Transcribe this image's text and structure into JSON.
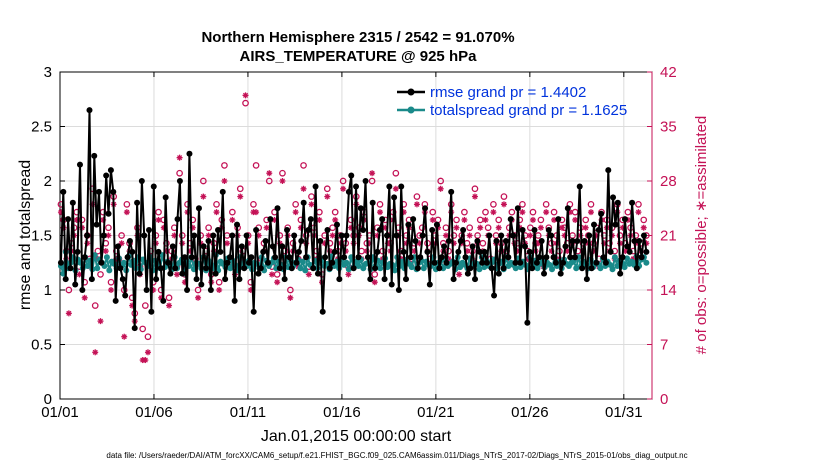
{
  "chart_data": {
    "type": "line",
    "title": "Northern Hemisphere 2315 / 2542 = 91.070%",
    "subtitle": "AIRS_TEMPERATURE @ 925 hPa",
    "xlabel": "Jan.01,2015 00:00:00 start",
    "ylabel": "rmse and totalspread",
    "y2label": "# of obs: o=possible; ∗=assimilated",
    "xlim": [
      0,
      31.5
    ],
    "ylim": [
      0,
      3
    ],
    "y2lim": [
      0,
      42
    ],
    "x_ticks": [
      {
        "x": 0,
        "label": "01/01"
      },
      {
        "x": 5,
        "label": "01/06"
      },
      {
        "x": 10,
        "label": "01/11"
      },
      {
        "x": 15,
        "label": "01/16"
      },
      {
        "x": 20,
        "label": "01/21"
      },
      {
        "x": 25,
        "label": "01/26"
      },
      {
        "x": 30,
        "label": "01/31"
      }
    ],
    "y_ticks": [
      "0",
      "0.5",
      "1",
      "1.5",
      "2",
      "2.5",
      "3"
    ],
    "y2_ticks": [
      "0",
      "7",
      "14",
      "21",
      "28",
      "35",
      "42"
    ],
    "legend": {
      "position": "top-right",
      "entries": [
        "rmse grand pr = 1.4402",
        "totalspread grand pr = 1.1625"
      ]
    },
    "colors": {
      "rmse": "#000000",
      "spread": "#1a8a8a",
      "obs": "#c41256",
      "legend_text": "#0033dd"
    },
    "series": [
      {
        "name": "rmse",
        "values": [
          1.25,
          1.9,
          1.1,
          1.65,
          1.2,
          1.8,
          1.05,
          1.35,
          2.15,
          1.0,
          1.3,
          1.5,
          2.65,
          1.1,
          2.23,
          1.6,
          1.9,
          1.25,
          1.5,
          2.05,
          1.7,
          2.1,
          1.9,
          0.9,
          1.4,
          1.2,
          1.1,
          0.95,
          1.3,
          1.45,
          1.35,
          0.65,
          1.8,
          1.15,
          2.0,
          1.5,
          1.0,
          1.55,
          0.8,
          1.95,
          1.1,
          1.35,
          1.2,
          0.9,
          1.85,
          1.25,
          1.15,
          1.4,
          1.2,
          1.65,
          2.0,
          1.15,
          1.3,
          1.0,
          2.25,
          1.3,
          1.5,
          1.1,
          1.75,
          1.05,
          1.4,
          1.2,
          1.45,
          1.0,
          1.5,
          1.15,
          1.55,
          1.35,
          1.9,
          1.1,
          1.25,
          1.3,
          1.5,
          0.9,
          1.6,
          1.1,
          1.4,
          1.2,
          1.5,
          1.25,
          1.3,
          0.8,
          1.55,
          1.15,
          1.2,
          1.35,
          1.45,
          1.25,
          1.65,
          1.4,
          1.3,
          1.75,
          1.2,
          1.4,
          1.1,
          1.55,
          1.3,
          1.2,
          1.5,
          1.25,
          1.35,
          1.45,
          1.8,
          1.3,
          1.55,
          1.65,
          1.2,
          1.95,
          1.15,
          1.45,
          0.8,
          1.3,
          1.55,
          1.2,
          1.25,
          1.35,
          1.6,
          1.1,
          1.5,
          1.3,
          1.5,
          1.9,
          2.05,
          1.2,
          1.95,
          1.3,
          1.75,
          1.55,
          2.0,
          1.3,
          1.1,
          1.8,
          1.2,
          1.35,
          1.55,
          1.65,
          1.1,
          1.5,
          1.95,
          1.05,
          1.85,
          1.5,
          1.0,
          1.95,
          1.35,
          1.1,
          1.6,
          1.3,
          1.65,
          1.45,
          1.2,
          1.3,
          1.5,
          1.75,
          1.35,
          1.05,
          1.55,
          1.25,
          1.6,
          1.2,
          1.3,
          1.4,
          1.25,
          1.45,
          1.9,
          1.1,
          1.25,
          1.35,
          1.45,
          1.55,
          1.3,
          1.15,
          1.2,
          1.4,
          1.1,
          1.45,
          1.35,
          1.25,
          1.35,
          1.25,
          1.5,
          1.2,
          0.95,
          1.45,
          1.15,
          1.5,
          1.2,
          1.45,
          1.3,
          1.65,
          1.5,
          1.25,
          1.75,
          1.25,
          1.55,
          1.4,
          0.7,
          1.35,
          1.2,
          1.55,
          1.25,
          1.3,
          1.45,
          1.15,
          1.3,
          1.55,
          1.5,
          1.3,
          1.25,
          1.65,
          1.15,
          1.25,
          1.4,
          1.75,
          1.3,
          1.45,
          1.3,
          1.45,
          1.95,
          1.2,
          1.45,
          1.1,
          1.5,
          1.2,
          1.6,
          1.25,
          1.55,
          1.7,
          1.3,
          1.25,
          2.1,
          1.35,
          1.85,
          1.6,
          1.8,
          1.15,
          1.3,
          1.65,
          1.4,
          1.35,
          1.8,
          1.45,
          1.2,
          1.45,
          1.3,
          1.5,
          1.35
        ]
      },
      {
        "name": "totalspread",
        "values": [
          1.22,
          1.15,
          1.35,
          1.2,
          1.25,
          1.3,
          1.18,
          1.28,
          1.25,
          1.2,
          1.3,
          1.22,
          1.27,
          1.19,
          1.32,
          1.2,
          1.28,
          1.25,
          1.22,
          1.3,
          1.18,
          1.26,
          1.24,
          1.2,
          1.29,
          1.22,
          1.25,
          1.18,
          1.31,
          1.23,
          1.27,
          1.2,
          1.3,
          1.19,
          1.28,
          1.25,
          1.22,
          1.3,
          1.18,
          1.27,
          1.24,
          1.2,
          1.32,
          1.21,
          1.26,
          1.23,
          1.19,
          1.3,
          1.2,
          1.25,
          1.28,
          1.15,
          1.27,
          1.22,
          1.3,
          1.19,
          1.25,
          1.24,
          1.2,
          1.3,
          1.18,
          1.27,
          1.23,
          1.2,
          1.32,
          1.18,
          1.26,
          1.24,
          1.21,
          1.29,
          1.2,
          1.27,
          1.23,
          1.18,
          1.3,
          1.21,
          1.26,
          1.22,
          1.28,
          1.19,
          1.25,
          1.24,
          1.2,
          1.3,
          1.18,
          1.27,
          1.22,
          1.25,
          1.29,
          1.2,
          1.26,
          1.23,
          1.19,
          1.3,
          1.21,
          1.27,
          1.22,
          1.25,
          1.28,
          1.2,
          1.26,
          1.18,
          1.3,
          1.23,
          1.21,
          1.27,
          1.2,
          1.25,
          1.29,
          1.22,
          1.24,
          1.19,
          1.31,
          1.22,
          1.26,
          1.2,
          1.28,
          1.23,
          1.25,
          1.19,
          1.3,
          1.21,
          1.26,
          1.22,
          1.28,
          1.2,
          1.24,
          1.25,
          1.19,
          1.3,
          1.22,
          1.27,
          1.2,
          1.25,
          1.29,
          1.21,
          1.24,
          1.23,
          1.18,
          1.3,
          1.22,
          1.26,
          1.2,
          1.28,
          1.24,
          1.21,
          1.3,
          1.19,
          1.25,
          1.27,
          1.2,
          1.26,
          1.23,
          1.22,
          1.3,
          1.19,
          1.25,
          1.27,
          1.2,
          1.28,
          1.22,
          1.24,
          1.26,
          1.19,
          1.3,
          1.21,
          1.25,
          1.23,
          1.2,
          1.29,
          1.22,
          1.25,
          1.24,
          1.19,
          1.3,
          1.21,
          1.27,
          1.22,
          1.25,
          1.28,
          1.2,
          1.24,
          1.26,
          1.19,
          1.3,
          1.22,
          1.25,
          1.23,
          1.2,
          1.29,
          1.21,
          1.26,
          1.23,
          1.19,
          1.3,
          1.22,
          1.27,
          1.2,
          1.24,
          1.28,
          1.21,
          1.25,
          1.23,
          1.19,
          1.3,
          1.22,
          1.26,
          1.2,
          1.28,
          1.24,
          1.22,
          1.25,
          1.27,
          1.2,
          1.3,
          1.22,
          1.26,
          1.23,
          1.2,
          1.28,
          1.21,
          1.25,
          1.24,
          1.2,
          1.29,
          1.22,
          1.26,
          1.23,
          1.19,
          1.3,
          1.22,
          1.27,
          1.25,
          1.21,
          1.29,
          1.24,
          1.26,
          1.23,
          1.31,
          1.22,
          1.28,
          1.3,
          1.25
        ]
      }
    ],
    "obs_possible": [
      25,
      23,
      19,
      14,
      20,
      22,
      24,
      17,
      23,
      15,
      21,
      18,
      27,
      12,
      19,
      16,
      24,
      20,
      22,
      15,
      26,
      19,
      18,
      21,
      14,
      25,
      20,
      13,
      11,
      22,
      17,
      9,
      12,
      8,
      19,
      15,
      21,
      24,
      14,
      23,
      20,
      13,
      19,
      22,
      17,
      29,
      21,
      16,
      25,
      20,
      23,
      18,
      14,
      21,
      28,
      19,
      22,
      16,
      20,
      25,
      15,
      23,
      30,
      21,
      18,
      24,
      17,
      22,
      27,
      19,
      38,
      21,
      15,
      25,
      30,
      22,
      18,
      20,
      23,
      28,
      17,
      24,
      16,
      21,
      29,
      19,
      22,
      14,
      20,
      25,
      18,
      23,
      30,
      21,
      17,
      26,
      22,
      19,
      24,
      16,
      21,
      27,
      20,
      22,
      24,
      19,
      21,
      28,
      20,
      17,
      23,
      21,
      26,
      22,
      19,
      24,
      20,
      21,
      28,
      16,
      22,
      25,
      19,
      23,
      21,
      20,
      24,
      29,
      22,
      19,
      25,
      21,
      23,
      18,
      20,
      26,
      21,
      22,
      25,
      20,
      18,
      24,
      21,
      23,
      28,
      20,
      22,
      19,
      25,
      21,
      23,
      17,
      21,
      24,
      20,
      22,
      19,
      27,
      21,
      23,
      20,
      24,
      22,
      18,
      25,
      21,
      23,
      20,
      26,
      19,
      22,
      24,
      21,
      20,
      23,
      25,
      21,
      19,
      22,
      24,
      20,
      21,
      23,
      18,
      25,
      22,
      20,
      24,
      21,
      19,
      23,
      22,
      20,
      25,
      21,
      24,
      19,
      22,
      20,
      23,
      21,
      25,
      20,
      22,
      18,
      24,
      21,
      23,
      20,
      22,
      19,
      25,
      21,
      23,
      20,
      24,
      22,
      19,
      21,
      25,
      20,
      23,
      21
    ],
    "obs_assimilated": [
      24,
      22,
      18,
      11,
      19,
      21,
      23,
      16,
      22,
      13,
      20,
      17,
      25,
      6,
      18,
      10,
      23,
      19,
      21,
      14,
      25,
      18,
      17,
      20,
      8,
      24,
      19,
      12,
      10,
      21,
      16,
      5,
      5,
      6,
      18,
      14,
      20,
      23,
      13,
      22,
      19,
      12,
      18,
      21,
      16,
      31,
      20,
      15,
      24,
      19,
      22,
      17,
      13,
      20,
      26,
      18,
      21,
      15,
      19,
      24,
      14,
      22,
      28,
      20,
      17,
      23,
      16,
      21,
      26,
      18,
      39,
      20,
      14,
      24,
      24,
      21,
      17,
      19,
      22,
      29,
      16,
      23,
      15,
      20,
      28,
      18,
      21,
      13,
      19,
      24,
      17,
      22,
      27,
      20,
      16,
      25,
      21,
      18,
      23,
      15,
      20,
      26,
      19,
      21,
      23,
      18,
      20,
      27,
      19,
      16,
      22,
      20,
      25,
      21,
      18,
      23,
      19,
      20,
      29,
      15,
      21,
      24,
      18,
      22,
      20,
      19,
      23,
      27,
      21,
      18,
      24,
      20,
      22,
      17,
      19,
      25,
      20,
      21,
      24,
      19,
      17,
      23,
      20,
      22,
      27,
      19,
      21,
      18,
      24,
      20,
      22,
      16,
      20,
      23,
      19,
      21,
      18,
      26,
      20,
      22,
      19,
      23,
      21,
      17,
      24,
      20,
      22,
      19,
      25,
      18,
      21,
      23,
      20,
      19,
      22,
      24,
      20,
      18,
      21,
      23,
      19,
      20,
      22,
      17,
      24,
      21,
      19,
      23,
      20,
      18,
      22,
      21,
      19,
      24,
      20,
      23,
      18,
      21,
      19,
      22,
      20,
      24,
      19,
      21,
      17,
      23,
      20,
      22,
      19,
      21,
      18,
      24,
      20,
      22,
      19,
      23,
      21,
      18,
      20,
      24,
      19,
      22,
      20
    ]
  },
  "footer": {
    "data_file": "data file: /Users/raeder/DAI/ATM_forcXX/CAM6_setup/f.e21.FHIST_BGC.f09_025.CAM6assim.011/Diags_NTrS_2017-02/Diags_NTrS_2015-01/obs_diag_output.nc"
  }
}
